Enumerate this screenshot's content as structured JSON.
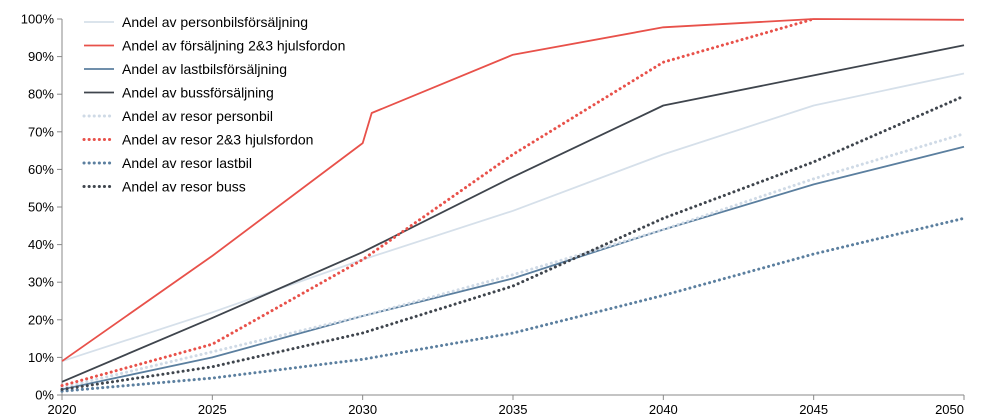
{
  "chart_data": {
    "type": "line",
    "title": "",
    "xlabel": "",
    "ylabel": "",
    "x": [
      2020,
      2025,
      2030,
      2035,
      2040,
      2045,
      2050
    ],
    "xlim": [
      2020,
      2050
    ],
    "ylim": [
      0,
      100
    ],
    "y_ticks": [
      "0%",
      "10%",
      "20%",
      "30%",
      "40%",
      "50%",
      "60%",
      "70%",
      "80%",
      "90%",
      "100%"
    ],
    "x_ticks": [
      "2020",
      "2025",
      "2030",
      "2035",
      "2040",
      "2045",
      "2050"
    ],
    "grid": false,
    "legend_position": "top-left",
    "series": [
      {
        "name": "Andel av personbilsförsäljning",
        "color": "#d6e0ea",
        "style": "solid",
        "x": [
          2020,
          2025,
          2030,
          2035,
          2040,
          2045,
          2050
        ],
        "values": [
          9,
          22,
          36,
          49,
          64,
          77,
          85.5
        ]
      },
      {
        "name": "Andel av försäljning 2&3 hjulsfordon",
        "color": "#e8514a",
        "style": "solid",
        "x": [
          2020,
          2025,
          2030,
          2030.3,
          2035,
          2040,
          2045,
          2050
        ],
        "values": [
          9,
          37,
          67,
          75,
          90.5,
          97.8,
          100,
          99.8
        ]
      },
      {
        "name": "Andel av lastbilsförsäljning",
        "color": "#5b7f9f",
        "style": "solid",
        "x": [
          2020,
          2025,
          2030,
          2035,
          2040,
          2045,
          2050
        ],
        "values": [
          1.5,
          10,
          21,
          31,
          44,
          56,
          66
        ]
      },
      {
        "name": "Andel av bussförsäljning",
        "color": "#3f454d",
        "style": "solid",
        "x": [
          2020,
          2025,
          2030,
          2035,
          2040,
          2045,
          2050
        ],
        "values": [
          3.5,
          20.5,
          38,
          58,
          77,
          85,
          93
        ]
      },
      {
        "name": "Andel av resor personbil",
        "color": "#cfdae6",
        "style": "dotted",
        "x": [
          2020,
          2025,
          2030,
          2035,
          2040,
          2045,
          2050
        ],
        "values": [
          2,
          11.5,
          21,
          32,
          44,
          57.5,
          69.5
        ]
      },
      {
        "name": "Andel av resor 2&3 hjulsfordon",
        "color": "#e8514a",
        "style": "dotted",
        "x": [
          2020,
          2025,
          2030,
          2035,
          2040,
          2045
        ],
        "values": [
          2.5,
          13.5,
          36,
          64,
          88.5,
          100
        ]
      },
      {
        "name": "Andel av resor lastbil",
        "color": "#5b7f9f",
        "style": "dotted",
        "x": [
          2020,
          2025,
          2030,
          2035,
          2040,
          2045,
          2050
        ],
        "values": [
          1,
          4.5,
          9.5,
          16.5,
          26.5,
          37.5,
          47
        ]
      },
      {
        "name": "Andel av resor buss",
        "color": "#3f454d",
        "style": "dotted",
        "x": [
          2020,
          2025,
          2030,
          2035,
          2040,
          2045,
          2050
        ],
        "values": [
          1.5,
          7.5,
          16.5,
          29,
          47,
          62,
          79.5
        ]
      }
    ]
  }
}
